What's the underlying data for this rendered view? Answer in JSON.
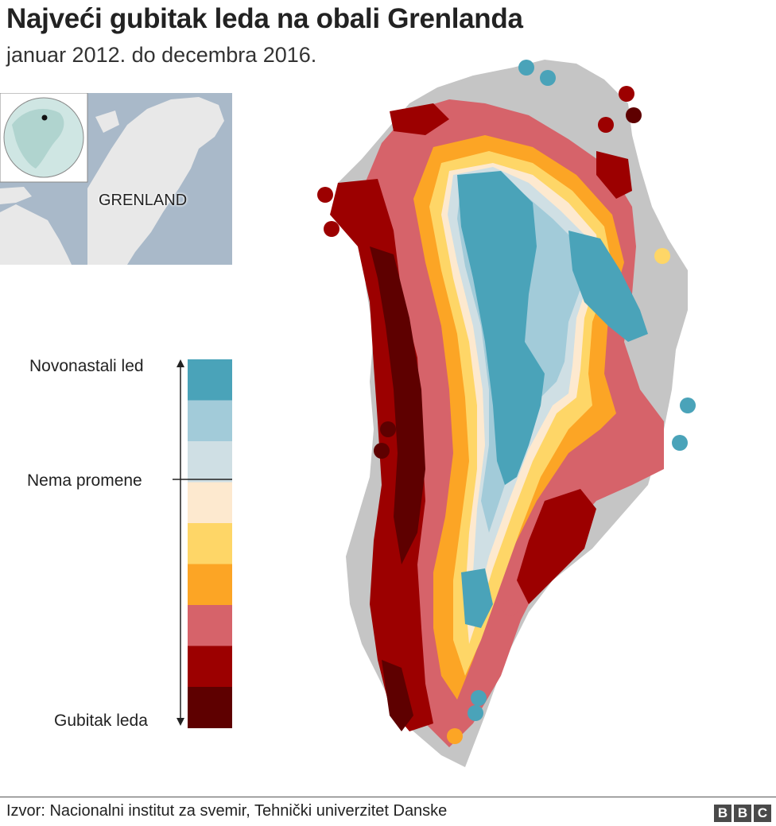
{
  "header": {
    "title": "Najveći gubitak leda na obali Grenlanda",
    "subtitle": "januar 2012. do decembra 2016."
  },
  "inset_map": {
    "label": "GRENLAND",
    "water_color": "#a9b9c9",
    "land_color": "#e8e8e8",
    "globe_color": "#b7d9d6"
  },
  "legend": {
    "top_label": "Novonastali led",
    "middle_label": "Nema promene",
    "bottom_label": "Gubitak leda",
    "colors": [
      "#4aa3b9",
      "#a2cbd9",
      "#cfdfe4",
      "#fde9cf",
      "#fed667",
      "#fca525",
      "#d6636a",
      "#9c0000",
      "#5e0000"
    ]
  },
  "map": {
    "land_color": "#c5c5c5"
  },
  "footer": {
    "source": "Izvor: Nacionalni institut za svemir, Tehnički univerzitet Danske",
    "logo_letters": [
      "B",
      "B",
      "C"
    ]
  }
}
